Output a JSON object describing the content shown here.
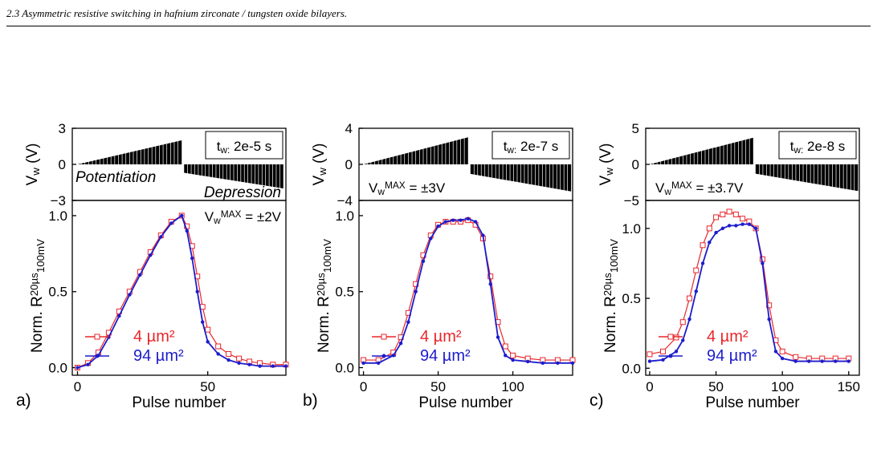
{
  "header": {
    "title": "2.3 Asymmetric resistive switching in hafnium zirconate / tungsten oxide bilayers."
  },
  "colors": {
    "red": "#e8262b",
    "blue": "#1c1ccc",
    "black": "#000000"
  },
  "chart_data": [
    {
      "panel": "a)",
      "type": "line",
      "tw": "t_w: 2e-5 s",
      "top": {
        "ylabel": "V_w (V)",
        "yticks": [
          "3",
          "0",
          "−3"
        ],
        "ylim": [
          -3,
          3
        ],
        "vmax_text": "V_w^MAX = ±2V",
        "potentiation": "Potentiation",
        "depression": "Depression",
        "pot_amp": 2,
        "dep_amp": -2,
        "pot_end": 40
      },
      "xlabel": "Pulse number",
      "ylabel": "Norm. R^20µs_100mV",
      "xticks": [
        "0",
        "50"
      ],
      "yticks": [
        "0.0",
        "0.5",
        "1.0"
      ],
      "xlim": [
        -2,
        80
      ],
      "ylim": [
        -0.05,
        1.1
      ],
      "x": [
        0,
        4,
        8,
        12,
        16,
        20,
        24,
        28,
        32,
        36,
        40,
        42,
        44,
        46,
        48,
        50,
        54,
        58,
        62,
        66,
        70,
        75,
        80
      ],
      "series": [
        {
          "name": "4 µm²",
          "color": "red",
          "marker": "square",
          "values": [
            0.0,
            0.03,
            0.1,
            0.23,
            0.37,
            0.5,
            0.63,
            0.76,
            0.87,
            0.96,
            1.0,
            0.93,
            0.8,
            0.6,
            0.4,
            0.25,
            0.14,
            0.09,
            0.06,
            0.04,
            0.03,
            0.02,
            0.02
          ]
        },
        {
          "name": "94 µm²",
          "color": "blue",
          "marker": "dot",
          "values": [
            0.0,
            0.02,
            0.08,
            0.2,
            0.34,
            0.48,
            0.61,
            0.74,
            0.86,
            0.95,
            1.0,
            0.9,
            0.72,
            0.5,
            0.3,
            0.17,
            0.09,
            0.05,
            0.03,
            0.02,
            0.01,
            0.01,
            0.01
          ]
        }
      ]
    },
    {
      "panel": "b)",
      "type": "line",
      "tw": "t_w: 2e-7 s",
      "top": {
        "ylabel": "V_w (V)",
        "yticks": [
          "4",
          "0",
          "−4"
        ],
        "ylim": [
          -4,
          4
        ],
        "vmax_text": "V_w^MAX = ±3V",
        "potentiation": "",
        "depression": "",
        "pot_amp": 3,
        "dep_amp": -3,
        "pot_end": 70
      },
      "xlabel": "Pulse number",
      "ylabel": "Norm. R^20µs_100mV",
      "xticks": [
        "0",
        "50",
        "100"
      ],
      "yticks": [
        "0.0",
        "0.5",
        "1.0"
      ],
      "xlim": [
        -3,
        140
      ],
      "ylim": [
        -0.05,
        1.1
      ],
      "x": [
        0,
        10,
        20,
        25,
        30,
        35,
        40,
        45,
        50,
        55,
        60,
        65,
        70,
        75,
        80,
        85,
        90,
        95,
        100,
        110,
        120,
        130,
        140
      ],
      "series": [
        {
          "name": "4 µm²",
          "color": "red",
          "marker": "square",
          "values": [
            0.05,
            0.05,
            0.1,
            0.2,
            0.36,
            0.55,
            0.74,
            0.87,
            0.94,
            0.96,
            0.96,
            0.96,
            0.97,
            0.94,
            0.85,
            0.6,
            0.3,
            0.14,
            0.08,
            0.06,
            0.05,
            0.05,
            0.05
          ]
        },
        {
          "name": "94 µm²",
          "color": "blue",
          "marker": "dot",
          "values": [
            0.03,
            0.03,
            0.08,
            0.16,
            0.3,
            0.5,
            0.7,
            0.85,
            0.93,
            0.96,
            0.97,
            0.97,
            0.98,
            0.96,
            0.87,
            0.55,
            0.2,
            0.08,
            0.05,
            0.04,
            0.03,
            0.03,
            0.03
          ]
        }
      ]
    },
    {
      "panel": "c)",
      "type": "line",
      "tw": "t_w: 2e-8 s",
      "top": {
        "ylabel": "V_w (V)",
        "yticks": [
          "5",
          "0",
          "−5"
        ],
        "ylim": [
          -5,
          5
        ],
        "vmax_text": "V_w^MAX = ±3.7V",
        "potentiation": "",
        "depression": "",
        "pot_amp": 3.7,
        "dep_amp": -3.7,
        "pot_end": 78
      },
      "xlabel": "Pulse number",
      "ylabel": "Norm. R^20µs_100mV",
      "xticks": [
        "0",
        "50",
        "100",
        "150"
      ],
      "yticks": [
        "0.0",
        "0.5",
        "1.0"
      ],
      "xlim": [
        -3,
        158
      ],
      "ylim": [
        -0.05,
        1.2
      ],
      "x": [
        0,
        10,
        20,
        25,
        30,
        35,
        40,
        45,
        50,
        55,
        60,
        65,
        70,
        75,
        80,
        85,
        90,
        95,
        100,
        110,
        120,
        130,
        140,
        150
      ],
      "series": [
        {
          "name": "4 µm²",
          "color": "red",
          "marker": "square",
          "values": [
            0.1,
            0.12,
            0.22,
            0.33,
            0.5,
            0.7,
            0.88,
            1.0,
            1.08,
            1.1,
            1.12,
            1.1,
            1.07,
            1.05,
            1.0,
            0.78,
            0.45,
            0.2,
            0.12,
            0.08,
            0.07,
            0.07,
            0.07,
            0.07
          ]
        },
        {
          "name": "94 µm²",
          "color": "blue",
          "marker": "dot",
          "values": [
            0.05,
            0.06,
            0.12,
            0.2,
            0.35,
            0.55,
            0.75,
            0.9,
            0.97,
            1.0,
            1.02,
            1.02,
            1.03,
            1.03,
            1.0,
            0.75,
            0.35,
            0.12,
            0.07,
            0.05,
            0.05,
            0.05,
            0.05,
            0.05
          ]
        }
      ]
    }
  ]
}
